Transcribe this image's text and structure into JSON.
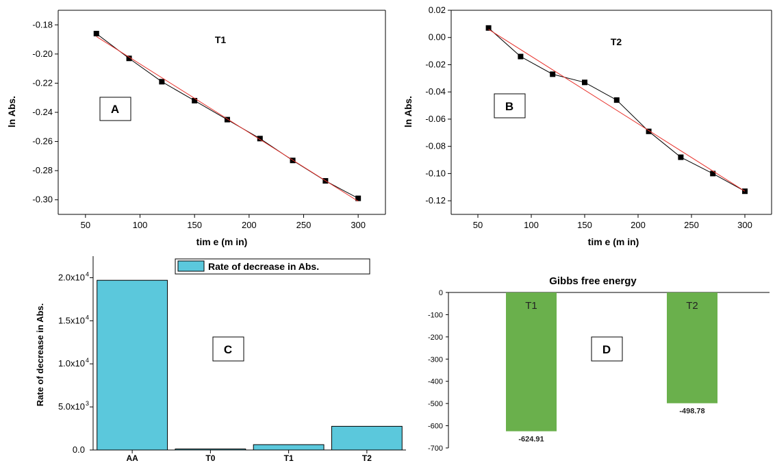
{
  "chart_data": [
    {
      "panel": "A",
      "type": "line",
      "title": "T1",
      "xlabel": "tim e (m in)",
      "ylabel": "ln Abs.",
      "xlim": [
        25,
        325
      ],
      "ylim": [
        -0.31,
        -0.17
      ],
      "x_ticks": [
        50,
        100,
        150,
        200,
        250,
        300
      ],
      "y_ticks": [
        -0.3,
        -0.28,
        -0.26,
        -0.24,
        -0.22,
        -0.2,
        -0.18
      ],
      "y_tick_labels": [
        "-0.30",
        "-0.28",
        "-0.26",
        "-0.24",
        "-0.22",
        "-0.20",
        "-0.18"
      ],
      "x_tick_labels": [
        "50",
        "100",
        "150",
        "200",
        "250",
        "300"
      ],
      "series": [
        {
          "kind": "data",
          "color": "#000000",
          "x": [
            60,
            90,
            120,
            150,
            180,
            210,
            240,
            270,
            300
          ],
          "y": [
            -0.186,
            -0.203,
            -0.219,
            -0.232,
            -0.245,
            -0.258,
            -0.273,
            -0.287,
            -0.299
          ]
        },
        {
          "kind": "fit",
          "color": "#e8302a",
          "x": [
            60,
            300
          ],
          "y": [
            -0.188,
            -0.301
          ]
        }
      ]
    },
    {
      "panel": "B",
      "type": "line",
      "title": "T2",
      "xlabel": "tim e (m in)",
      "ylabel": "ln Abs.",
      "xlim": [
        25,
        325
      ],
      "ylim": [
        -0.13,
        0.02
      ],
      "x_ticks": [
        50,
        100,
        150,
        200,
        250,
        300
      ],
      "y_ticks": [
        -0.12,
        -0.1,
        -0.08,
        -0.06,
        -0.04,
        -0.02,
        0.0,
        0.02
      ],
      "y_tick_labels": [
        "-0.12",
        "-0.10",
        "-0.08",
        "-0.06",
        "-0.04",
        "-0.02",
        "0.00",
        "0.02"
      ],
      "x_tick_labels": [
        "50",
        "100",
        "150",
        "200",
        "250",
        "300"
      ],
      "series": [
        {
          "kind": "data",
          "color": "#000000",
          "x": [
            60,
            90,
            120,
            150,
            180,
            210,
            240,
            270,
            300
          ],
          "y": [
            0.007,
            -0.014,
            -0.027,
            -0.033,
            -0.046,
            -0.069,
            -0.088,
            -0.1,
            -0.113
          ]
        },
        {
          "kind": "fit",
          "color": "#e8302a",
          "x": [
            60,
            300
          ],
          "y": [
            0.006,
            -0.113
          ]
        }
      ]
    },
    {
      "panel": "C",
      "type": "bar",
      "ylabel": "Rate of decrease in Abs.",
      "legend": "Rate of decrease in Abs.",
      "legend_position": "top-right",
      "categories": [
        "AA",
        "T0",
        "T1",
        "T2"
      ],
      "values": [
        19700,
        120,
        620,
        2750
      ],
      "ylim": [
        0,
        22500
      ],
      "y_ticks": [
        0,
        5000,
        10000,
        15000,
        20000
      ],
      "y_tick_mantissa": [
        "0.0",
        "5.0x10",
        "1.0x10",
        "1.5x10",
        "2.0x10"
      ],
      "y_tick_exponent": [
        "",
        "3",
        "4",
        "4",
        "4"
      ],
      "color": "#5bc8dc"
    },
    {
      "panel": "D",
      "type": "bar",
      "title": "Gibbs free energy",
      "categories": [
        "T1",
        "T2"
      ],
      "values": [
        -624.91,
        -498.78
      ],
      "data_labels": [
        "-624.91",
        "-498.78"
      ],
      "ylim": [
        -700,
        0
      ],
      "y_ticks": [
        0,
        -100,
        -200,
        -300,
        -400,
        -500,
        -600,
        -700
      ],
      "y_tick_labels": [
        "0",
        "-100",
        "-200",
        "-300",
        "-400",
        "-500",
        "-600",
        "-700"
      ],
      "color": "#6ab04c"
    }
  ],
  "panel_letters": [
    "A",
    "B",
    "C",
    "D"
  ]
}
